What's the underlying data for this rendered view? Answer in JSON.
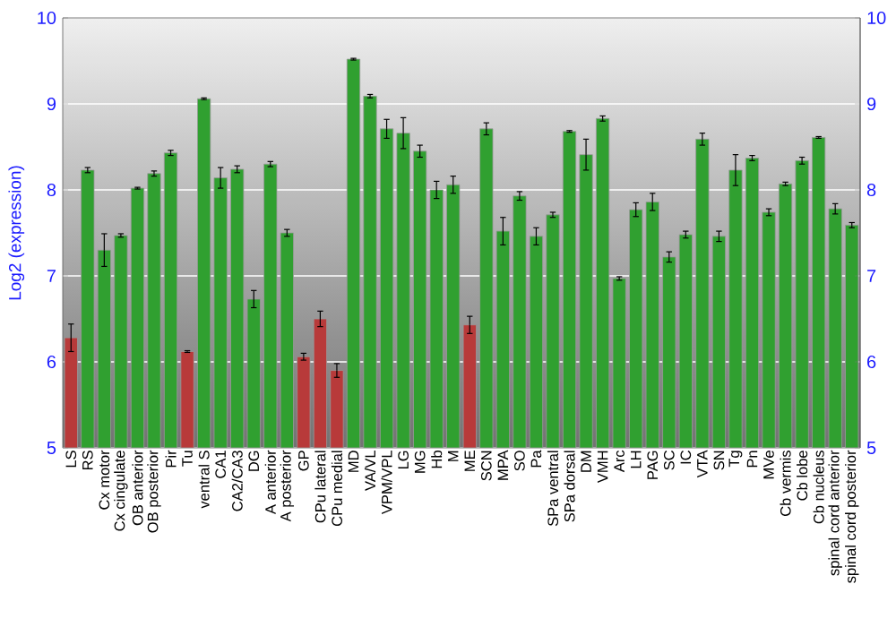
{
  "chart_data": {
    "type": "bar",
    "ylabel": "Log2 (expression)",
    "categories": [
      "LS",
      "RS",
      "Cx motor",
      "Cx cingulate",
      "OB anterior",
      "OB posterior",
      "Pir",
      "Tu",
      "ventral S",
      "CA1",
      "CA2/CA3",
      "DG",
      "A anterior",
      "A posterior",
      "GP",
      "CPu lateral",
      "CPu medial",
      "MD",
      "VA/VL",
      "VPM/VPL",
      "LG",
      "MG",
      "Hb",
      "M",
      "ME",
      "SCN",
      "MPA",
      "SO",
      "Pa",
      "SPa ventral",
      "SPa dorsal",
      "DM",
      "VMH",
      "Arc",
      "LH",
      "PAG",
      "SC",
      "IC",
      "VTA",
      "SN",
      "Tg",
      "Pn",
      "MVe",
      "Cb vermis",
      "Cb lobe",
      "Cb nucleus",
      "spinal cord anterior",
      "spinal cord posterior"
    ],
    "values": [
      6.28,
      8.23,
      7.3,
      7.47,
      8.02,
      8.19,
      8.43,
      6.12,
      9.06,
      8.14,
      8.24,
      6.73,
      8.3,
      7.5,
      6.06,
      6.5,
      5.9,
      9.52,
      9.09,
      8.71,
      8.66,
      8.45,
      8.0,
      8.06,
      6.43,
      8.71,
      7.52,
      7.93,
      7.46,
      7.71,
      8.68,
      8.41,
      8.83,
      6.97,
      7.77,
      7.86,
      7.22,
      7.48,
      8.59,
      7.46,
      8.23,
      8.37,
      7.74,
      8.07,
      8.34,
      8.61,
      7.78,
      7.59
    ],
    "errors": [
      0.16,
      0.03,
      0.19,
      0.02,
      0.01,
      0.03,
      0.03,
      0.01,
      0.01,
      0.12,
      0.04,
      0.1,
      0.03,
      0.04,
      0.04,
      0.09,
      0.08,
      0.01,
      0.02,
      0.11,
      0.18,
      0.07,
      0.1,
      0.1,
      0.1,
      0.07,
      0.16,
      0.05,
      0.1,
      0.03,
      0.01,
      0.18,
      0.03,
      0.02,
      0.08,
      0.1,
      0.06,
      0.04,
      0.07,
      0.06,
      0.18,
      0.03,
      0.04,
      0.02,
      0.04,
      0.01,
      0.06,
      0.03
    ],
    "colors": [
      "#b83a3a",
      "#30a030",
      "#30a030",
      "#30a030",
      "#30a030",
      "#30a030",
      "#30a030",
      "#b83a3a",
      "#30a030",
      "#30a030",
      "#30a030",
      "#30a030",
      "#30a030",
      "#30a030",
      "#b83a3a",
      "#b83a3a",
      "#b83a3a",
      "#30a030",
      "#30a030",
      "#30a030",
      "#30a030",
      "#30a030",
      "#30a030",
      "#30a030",
      "#b83a3a",
      "#30a030",
      "#30a030",
      "#30a030",
      "#30a030",
      "#30a030",
      "#30a030",
      "#30a030",
      "#30a030",
      "#30a030",
      "#30a030",
      "#30a030",
      "#30a030",
      "#30a030",
      "#30a030",
      "#30a030",
      "#30a030",
      "#30a030",
      "#30a030",
      "#30a030",
      "#30a030",
      "#30a030",
      "#30a030",
      "#30a030"
    ],
    "ylim": [
      5,
      10
    ],
    "yticks": [
      5,
      6,
      7,
      8,
      9,
      10
    ],
    "y2lim": [
      5,
      10
    ],
    "y2ticks": [
      5,
      6,
      7,
      8,
      9,
      10
    ],
    "grid": "y"
  }
}
